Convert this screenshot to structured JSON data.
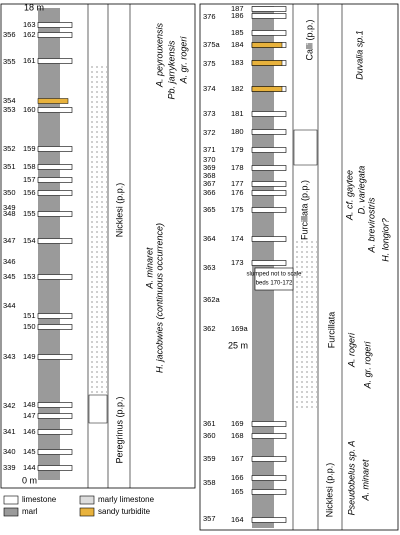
{
  "left": {
    "scale_top": "18 m",
    "scale_bottom": "0 m",
    "outer_beds": [
      "356",
      "355",
      "354",
      "353",
      "352",
      "351",
      "350",
      "349",
      "348",
      "347",
      "346",
      "345",
      "344",
      "343",
      "342",
      "341",
      "340",
      "339"
    ],
    "inner_beds": [
      "163",
      "162",
      "161",
      "160",
      "159",
      "158",
      "157",
      "156",
      "155",
      "154",
      "153",
      "151",
      "150",
      "149",
      "148",
      "147",
      "146",
      "145",
      "144"
    ],
    "zones": [
      "Nicklesi (p.p.)",
      "Peregrinus (p.p.)"
    ],
    "taxa": [
      "A. peyrouxensis",
      "Pb. jarrykensis",
      "A. gr. rogeri",
      "A. minaret",
      "H. jacobwies (continuous occurrence)"
    ]
  },
  "right": {
    "scale_mid": "25 m",
    "outer_beds": [
      "376",
      "375a",
      "375",
      "374",
      "373",
      "372",
      "371",
      "370",
      "369",
      "368",
      "367",
      "366",
      "365",
      "364",
      "363",
      "362a",
      "362",
      "361",
      "360",
      "359",
      "358",
      "357"
    ],
    "inner_beds": [
      "187",
      "186",
      "185",
      "184",
      "183",
      "182",
      "181",
      "180",
      "179",
      "178",
      "177",
      "176",
      "175",
      "174",
      "173",
      "169a",
      "169",
      "168",
      "167",
      "166",
      "165",
      "164"
    ],
    "zones": [
      "Calli (p.p.)",
      "Furcillata (p.p.)",
      "Furcillata",
      "Nicklesi (p.p.)"
    ],
    "taxa": [
      "Duvalia sp.1",
      "A. cf. gaytee",
      "D. variegata",
      "A. brevirostris",
      "H. longior?",
      "A. rogeri",
      "A. gr. rogeri",
      "Pseudobelus sp. A",
      "A. minaret"
    ],
    "slump_note": [
      "slumped not to scale",
      "beds 170-172"
    ]
  },
  "legend": [
    "limestone",
    "marly limestone",
    "marl",
    "sandy turbidite"
  ]
}
